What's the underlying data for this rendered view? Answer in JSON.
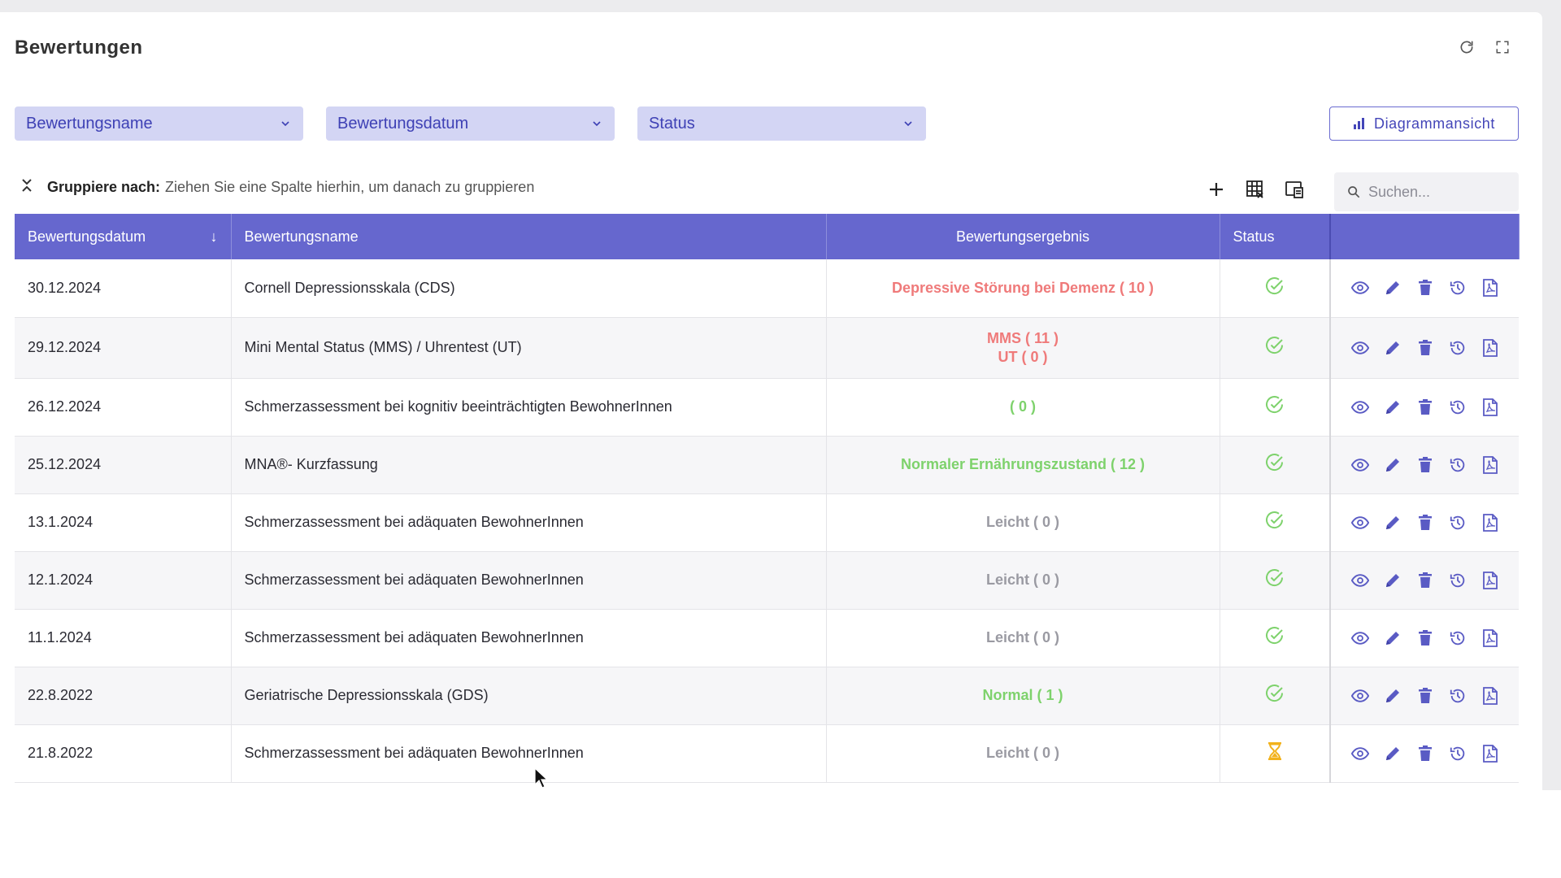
{
  "page": {
    "title": "Bewertungen"
  },
  "filters": [
    {
      "label": "Bewertungsname"
    },
    {
      "label": "Bewertungsdatum"
    },
    {
      "label": "Status"
    }
  ],
  "diagram_button": {
    "label": "Diagrammansicht"
  },
  "group_bar": {
    "label": "Gruppiere nach:",
    "hint": "Ziehen Sie eine Spalte hierhin, um danach zu gruppieren"
  },
  "search": {
    "placeholder": "Suchen..."
  },
  "table": {
    "columns": [
      "Bewertungsdatum",
      "Bewertungsname",
      "Bewertungsergebnis",
      "Status"
    ],
    "rows": [
      {
        "date": "30.12.2024",
        "name": "Cornell Depressionsskala (CDS)",
        "result": [
          "Depressive Störung bei Demenz ( 10 )"
        ],
        "result_color": "red",
        "status": "done"
      },
      {
        "date": "29.12.2024",
        "name": "Mini Mental Status (MMS) / Uhrentest (UT)",
        "result": [
          "MMS ( 11 )",
          "UT ( 0 )"
        ],
        "result_color": "red",
        "status": "done"
      },
      {
        "date": "26.12.2024",
        "name": "Schmerzassessment bei kognitiv beeinträchtigten BewohnerInnen",
        "result": [
          "( 0 )"
        ],
        "result_color": "green",
        "status": "done"
      },
      {
        "date": "25.12.2024",
        "name": "MNA®- Kurzfassung",
        "result": [
          "Normaler Ernährungszustand ( 12 )"
        ],
        "result_color": "green",
        "status": "done"
      },
      {
        "date": "13.1.2024",
        "name": "Schmerzassessment bei adäquaten BewohnerInnen",
        "result": [
          "Leicht ( 0 )"
        ],
        "result_color": "gray",
        "status": "done"
      },
      {
        "date": "12.1.2024",
        "name": "Schmerzassessment bei adäquaten BewohnerInnen",
        "result": [
          "Leicht ( 0 )"
        ],
        "result_color": "gray",
        "status": "done"
      },
      {
        "date": "11.1.2024",
        "name": "Schmerzassessment bei adäquaten BewohnerInnen",
        "result": [
          "Leicht ( 0 )"
        ],
        "result_color": "gray",
        "status": "done"
      },
      {
        "date": "22.8.2022",
        "name": "Geriatrische Depressionsskala (GDS)",
        "result": [
          "Normal ( 1 )"
        ],
        "result_color": "green",
        "status": "done"
      },
      {
        "date": "21.8.2022",
        "name": "Schmerzassessment bei adäquaten BewohnerInnen",
        "result": [
          "Leicht ( 0 )"
        ],
        "result_color": "gray",
        "status": "pending"
      }
    ]
  },
  "colors": {
    "accent": "#6667ce",
    "filter_bg": "#d3d5f4",
    "filter_text": "#3e41b5",
    "result_red": "#ef7a7a",
    "result_green": "#7ed26c",
    "result_gray": "#9a9aa2",
    "status_done": "#7ed26c",
    "status_pending": "#f2b21c"
  },
  "icons": {
    "top": [
      "refresh-icon",
      "fullscreen-icon"
    ],
    "tools": [
      "add-icon",
      "grid-export-icon",
      "column-chooser-icon"
    ],
    "row_actions": [
      "view-icon",
      "edit-icon",
      "delete-icon",
      "history-icon",
      "pdf-icon"
    ]
  }
}
